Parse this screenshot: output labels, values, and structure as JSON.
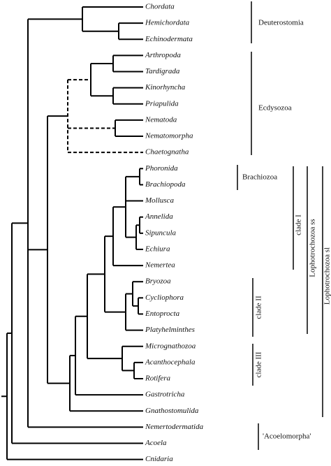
{
  "taxa": [
    "Chordata",
    "Hemichordata",
    "Echinodermata",
    "Arthropoda",
    "Tardigrada",
    "Kinorhyncha",
    "Priapulida",
    "Nematoda",
    "Nematomorpha",
    "Chaetognatha",
    "Phoronida",
    "Brachiopoda",
    "Mollusca",
    "Annelida",
    "Sipuncula",
    "Echiura",
    "Nemertea",
    "Bryozoa",
    "Cycliophora",
    "Entoprocta",
    "Platyhelminthes",
    "Micrognathozoa",
    "Acanthocephala",
    "Rotifera",
    "Gastrotricha",
    "Gnathostomulida",
    "Nemertodermatida",
    "Acoela",
    "Cnidaria"
  ],
  "clades": [
    "Deuterostomia",
    "Ecdysozoa",
    "Brachiozoa",
    "clade I",
    "Lophotrochozoa ss",
    "Lophotrochozoa sl",
    "clade II",
    "clade III",
    "'Acoelomorpha'"
  ]
}
